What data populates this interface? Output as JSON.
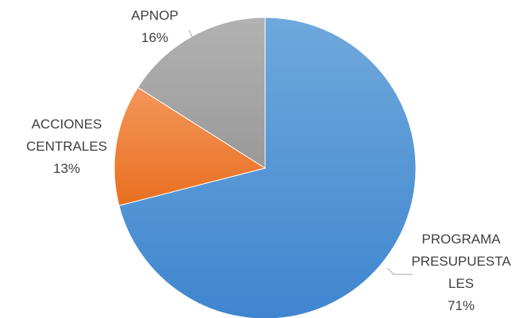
{
  "chart_data": {
    "type": "pie",
    "categories": [
      "PROGRAMA PRESUPUESTALES",
      "ACCIONES CENTRALES",
      "APNOP"
    ],
    "values": [
      71,
      13,
      16
    ],
    "value_labels": [
      "71%",
      "13%",
      "16%"
    ],
    "colors": [
      "#5b9bd5",
      "#ed7d31",
      "#a5a5a5"
    ]
  }
}
